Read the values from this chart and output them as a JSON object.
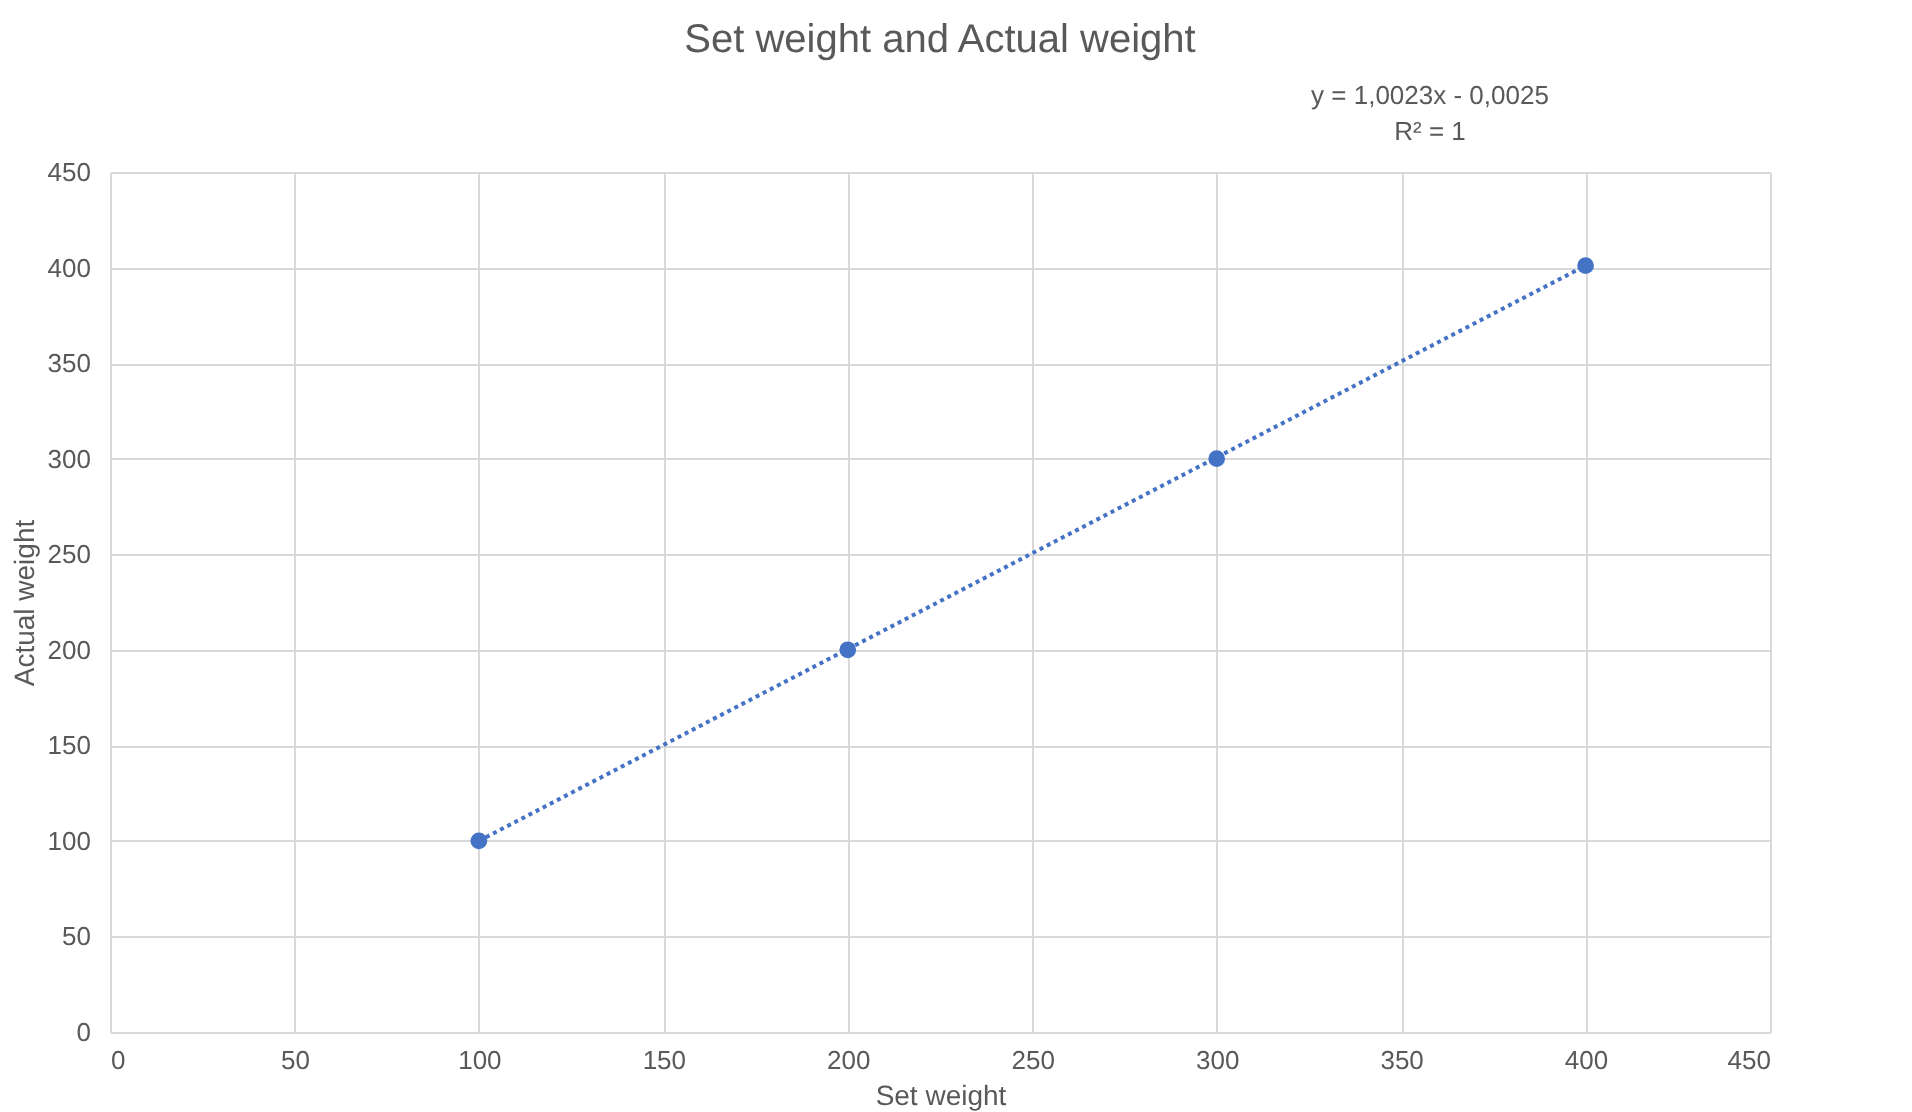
{
  "chart_data": {
    "type": "scatter",
    "title": "Set weight and Actual weight",
    "xlabel": "Set weight",
    "ylabel": "Actual weight",
    "annotations": [
      "y = 1,0023x - 0,0025",
      "R² = 1"
    ],
    "xlim": [
      0,
      450
    ],
    "xticks": [
      0,
      50,
      100,
      150,
      200,
      250,
      300,
      350,
      400,
      450
    ],
    "ylim": [
      0,
      450
    ],
    "yticks": [
      0,
      50,
      100,
      150,
      200,
      250,
      300,
      350,
      400,
      450
    ],
    "grid": true,
    "series": [
      {
        "type": "line",
        "color": "#4472c4",
        "x": [
          100,
          400
        ],
        "values": [
          100,
          401
        ],
        "line_style": "dotted"
      },
      {
        "type": "scatter",
        "color": "#4472c4",
        "x": [
          100,
          200,
          300,
          400
        ],
        "values": [
          100,
          200,
          300,
          401
        ],
        "marker": "circle"
      }
    ]
  }
}
